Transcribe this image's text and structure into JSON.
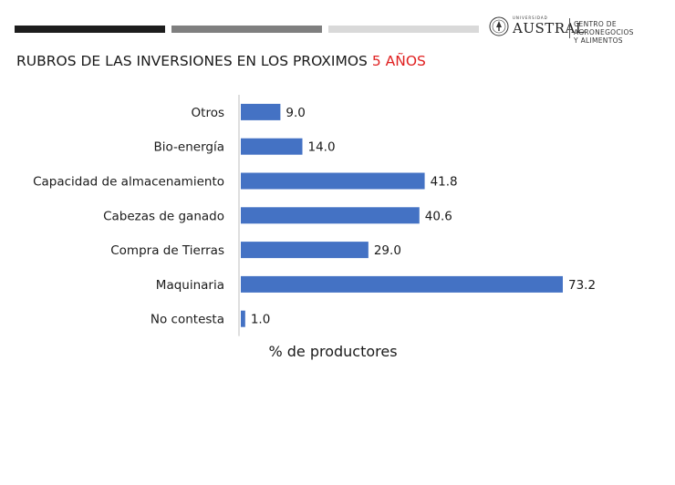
{
  "header": {
    "logo": {
      "university_small": "UNIVERSIDAD",
      "university_name": "AUSTRAL",
      "center_line1": "CENTRO DE AGRONEGOCIOS",
      "center_line2": "Y ALIMENTOS"
    }
  },
  "title": {
    "main": "RUBROS DE LAS INVERSIONES EN LOS PROXIMOS ",
    "highlight": "5 AÑOS"
  },
  "colors": {
    "bar": "#4472c4",
    "highlight": "#e02020",
    "axis": "#bfbfbf"
  },
  "chart_data": {
    "type": "bar",
    "orientation": "horizontal",
    "categories": [
      "Otros",
      "Bio-energía",
      "Capacidad de almacenamiento",
      "Cabezas de ganado",
      "Compra de Tierras",
      "Maquinaria",
      "No contesta"
    ],
    "values": [
      9.0,
      14.0,
      41.8,
      40.6,
      29.0,
      73.2,
      1.0
    ],
    "value_labels": [
      "9.0",
      "14.0",
      "41.8",
      "40.6",
      "29.0",
      "73.2",
      "1.0"
    ],
    "xlabel": "% de productores",
    "xlim": [
      0,
      73.2
    ],
    "grid": false
  }
}
